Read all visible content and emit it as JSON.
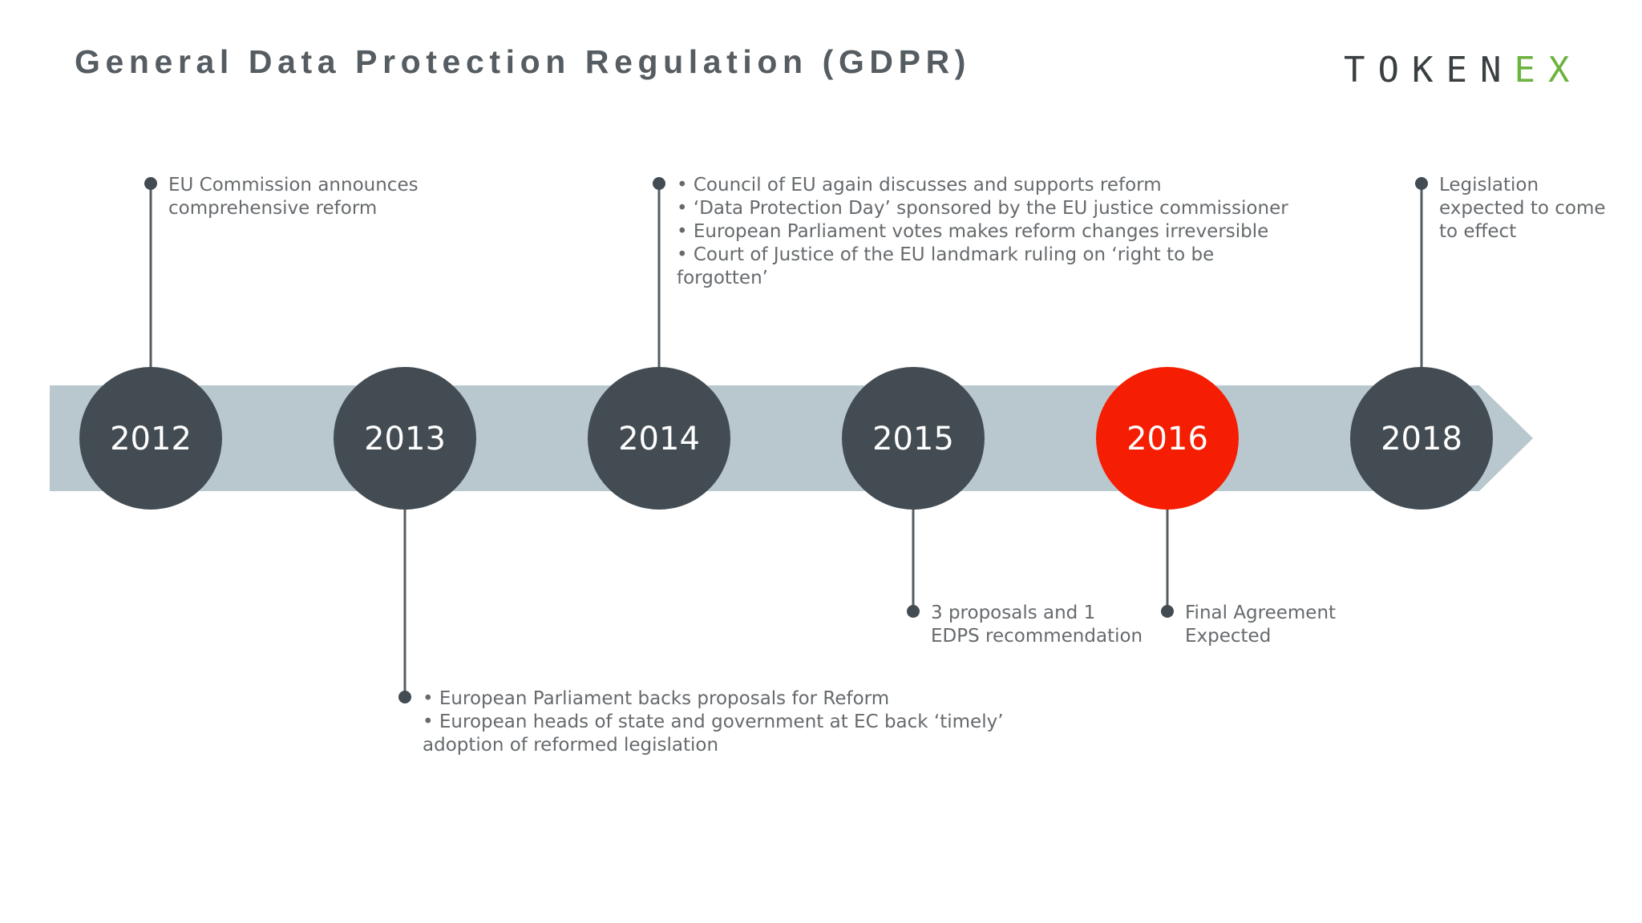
{
  "title": "General Data Protection Regulation (GDPR)",
  "logo": {
    "main": "TOKEN",
    "accent": "EX"
  },
  "colors": {
    "band": "#b9c7ce",
    "node": "#434c53",
    "highlight": "#f51d02",
    "connector": "#555c61",
    "event_text": "#666a6d"
  },
  "timeline": {
    "years": [
      {
        "label": "2012",
        "highlighted": false
      },
      {
        "label": "2013",
        "highlighted": false
      },
      {
        "label": "2014",
        "highlighted": false
      },
      {
        "label": "2015",
        "highlighted": false
      },
      {
        "label": "2016",
        "highlighted": true
      },
      {
        "label": "2018",
        "highlighted": false
      }
    ],
    "events": [
      {
        "year": "2012",
        "side": "top",
        "lines": [
          "EU Commission announces",
          "comprehensive reform"
        ]
      },
      {
        "year": "2013",
        "side": "bottom",
        "lines": [
          "• European Parliament backs proposals for Reform",
          "• European heads of state and government at EC back ‘timely’",
          "adoption of reformed legislation"
        ]
      },
      {
        "year": "2014",
        "side": "top",
        "lines": [
          "• Council of EU again discusses and supports reform",
          "• ‘Data Protection Day’ sponsored by the EU justice commissioner",
          "• European Parliament votes makes reform changes irreversible",
          "• Court of Justice of the EU landmark ruling on ‘right to be",
          "forgotten’"
        ]
      },
      {
        "year": "2015",
        "side": "bottom",
        "lines": [
          "3 proposals and 1",
          "EDPS recommendation"
        ]
      },
      {
        "year": "2016",
        "side": "bottom",
        "lines": [
          "Final Agreement",
          "Expected"
        ]
      },
      {
        "year": "2018",
        "side": "top",
        "lines": [
          "Legislation",
          "expected to come",
          "to effect"
        ]
      }
    ]
  }
}
